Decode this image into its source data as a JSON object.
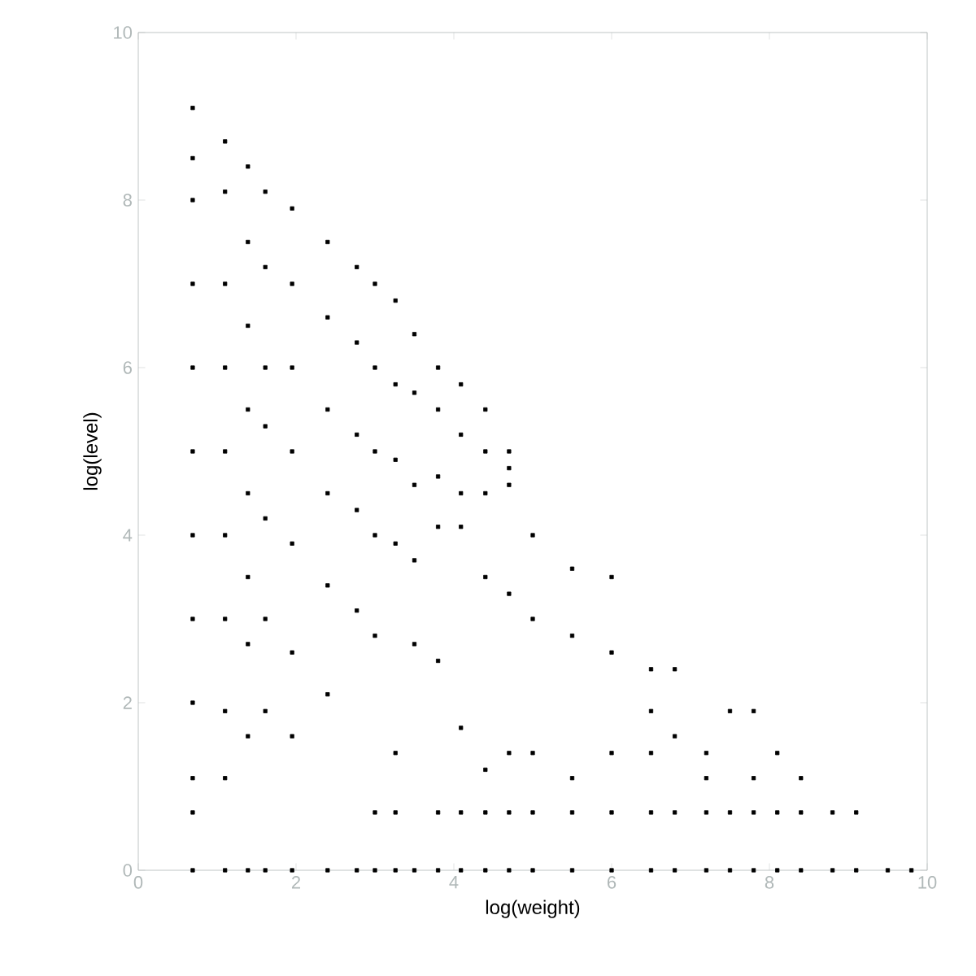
{
  "chart_data": {
    "type": "scatter",
    "xlabel": "log(weight)",
    "ylabel": "log(level)",
    "xlim": [
      0,
      10
    ],
    "ylim": [
      0,
      10
    ],
    "xticks": [
      0,
      2,
      4,
      6,
      8,
      10
    ],
    "yticks": [
      0,
      2,
      4,
      6,
      8,
      10
    ],
    "grid": false,
    "marker": "square",
    "series": [
      {
        "color": "#000000",
        "x": [
          0.69,
          0.69,
          0.69,
          0.69,
          0.69,
          0.69,
          0.69,
          0.69,
          0.69,
          0.69,
          0.69,
          0.69,
          1.1,
          1.1,
          1.1,
          1.1,
          1.1,
          1.1,
          1.1,
          1.1,
          1.1,
          1.1,
          1.39,
          1.39,
          1.39,
          1.39,
          1.39,
          1.39,
          1.39,
          1.39,
          1.39,
          1.61,
          1.61,
          1.61,
          1.61,
          1.61,
          1.61,
          1.61,
          1.61,
          1.95,
          1.95,
          1.95,
          1.95,
          1.95,
          1.95,
          1.95,
          1.95,
          2.4,
          2.4,
          2.4,
          2.4,
          2.4,
          2.4,
          2.4,
          2.77,
          2.77,
          2.77,
          2.77,
          2.77,
          2.77,
          3.0,
          3.0,
          3.0,
          3.0,
          3.0,
          3.0,
          3.0,
          3.26,
          3.26,
          3.26,
          3.26,
          3.26,
          3.26,
          3.26,
          3.5,
          3.5,
          3.5,
          3.5,
          3.5,
          3.5,
          3.8,
          3.8,
          3.8,
          3.8,
          3.8,
          3.8,
          3.8,
          4.09,
          4.09,
          4.09,
          4.09,
          4.09,
          4.09,
          4.09,
          4.4,
          4.4,
          4.4,
          4.4,
          4.4,
          4.4,
          4.4,
          4.7,
          4.7,
          4.7,
          4.7,
          4.7,
          4.7,
          4.7,
          5.0,
          5.0,
          5.0,
          5.0,
          5.0,
          5.5,
          5.5,
          5.5,
          5.5,
          5.5,
          6.0,
          6.0,
          6.0,
          6.0,
          6.0,
          6.5,
          6.5,
          6.5,
          6.5,
          6.5,
          6.8,
          6.8,
          6.8,
          6.8,
          7.2,
          7.2,
          7.2,
          7.2,
          7.5,
          7.5,
          7.5,
          7.8,
          7.8,
          7.8,
          7.8,
          8.1,
          8.1,
          8.1,
          8.4,
          8.4,
          8.4,
          8.8,
          8.8,
          9.1,
          9.1,
          9.5,
          9.8
        ],
        "values": [
          9.1,
          8.5,
          8.0,
          7.0,
          6.0,
          5.0,
          4.0,
          3.0,
          2.0,
          1.1,
          0.69,
          0,
          8.7,
          8.1,
          7.0,
          6.0,
          5.0,
          4.0,
          3.0,
          1.9,
          1.1,
          0,
          8.4,
          7.5,
          6.5,
          5.5,
          4.5,
          3.5,
          2.7,
          1.6,
          0,
          8.1,
          7.2,
          6.0,
          5.3,
          4.2,
          3.0,
          1.9,
          0,
          7.9,
          7.0,
          6.0,
          5.0,
          3.9,
          2.6,
          1.6,
          0,
          7.5,
          6.6,
          5.5,
          4.5,
          3.4,
          2.1,
          0,
          7.2,
          6.3,
          5.2,
          4.3,
          3.1,
          0,
          7.0,
          6.0,
          5.0,
          4.0,
          2.8,
          0.69,
          0,
          6.8,
          5.8,
          4.9,
          3.9,
          1.4,
          0.69,
          0,
          6.4,
          5.7,
          4.6,
          3.7,
          2.7,
          0,
          6.0,
          5.5,
          4.7,
          4.1,
          2.5,
          0.69,
          0,
          5.8,
          5.2,
          4.5,
          4.1,
          1.7,
          0.69,
          0,
          5.5,
          5.0,
          4.5,
          3.5,
          1.2,
          0.69,
          0,
          5.0,
          4.8,
          4.6,
          3.3,
          1.4,
          0.69,
          0,
          4.0,
          3.0,
          1.4,
          0.69,
          0,
          3.6,
          2.8,
          1.1,
          0.69,
          0,
          3.5,
          2.6,
          1.4,
          0.69,
          0,
          2.4,
          1.9,
          1.4,
          0.69,
          0,
          2.4,
          1.6,
          0.69,
          0,
          1.4,
          1.1,
          0.69,
          0,
          1.9,
          0.69,
          0,
          1.9,
          1.1,
          0.69,
          0,
          1.4,
          0.69,
          0,
          1.1,
          0.69,
          0,
          0.69,
          0,
          0.69,
          0,
          0,
          0
        ]
      }
    ]
  }
}
